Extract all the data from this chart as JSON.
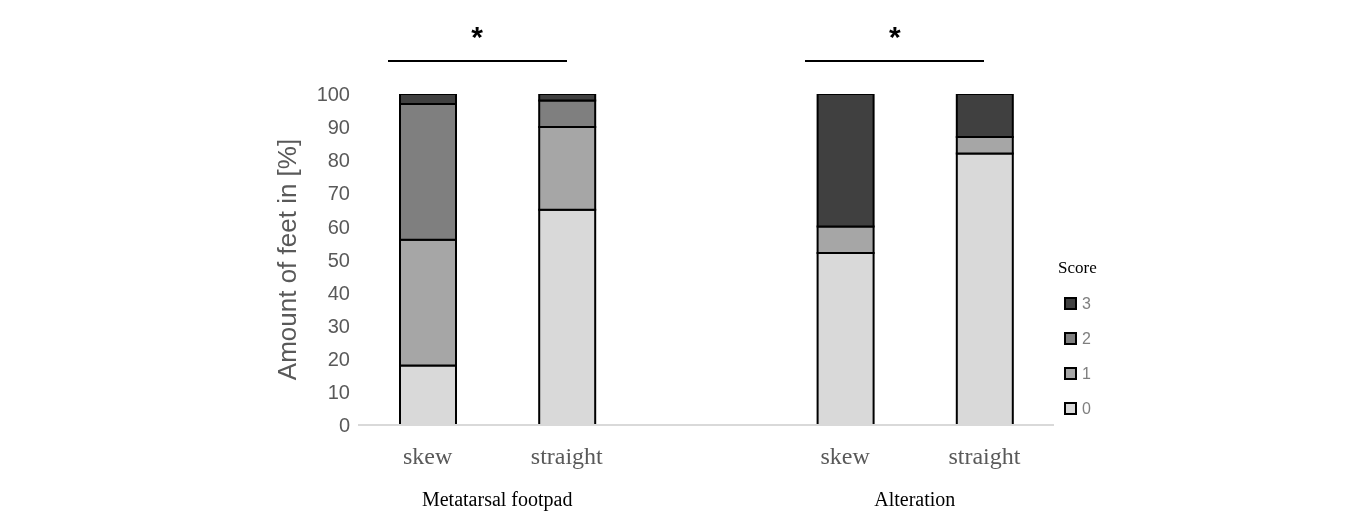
{
  "chart_data": {
    "type": "bar",
    "stacked": true,
    "ylabel": "Amount of feet in [%]",
    "legend_title": "Score",
    "legend": "right",
    "categories": [
      "skew",
      "straight",
      null,
      "skew",
      "straight"
    ],
    "series": [
      {
        "name": "0",
        "color": "#d9d9d9",
        "values": [
          18,
          65,
          null,
          52,
          82
        ]
      },
      {
        "name": "1",
        "color": "#a6a6a6",
        "values": [
          38,
          25,
          null,
          8,
          5
        ]
      },
      {
        "name": "2",
        "color": "#7f7f7f",
        "values": [
          41,
          8,
          null,
          0,
          0
        ]
      },
      {
        "name": "3",
        "color": "#404040",
        "values": [
          3,
          2,
          null,
          40,
          13
        ]
      }
    ],
    "ylim": [
      0,
      100
    ],
    "yticks": [
      0,
      10,
      20,
      30,
      40,
      50,
      60,
      70,
      80,
      90,
      100
    ],
    "grid": false,
    "annotations": [
      "*",
      "*",
      "Metatarsal footpad",
      "Alteration"
    ]
  }
}
